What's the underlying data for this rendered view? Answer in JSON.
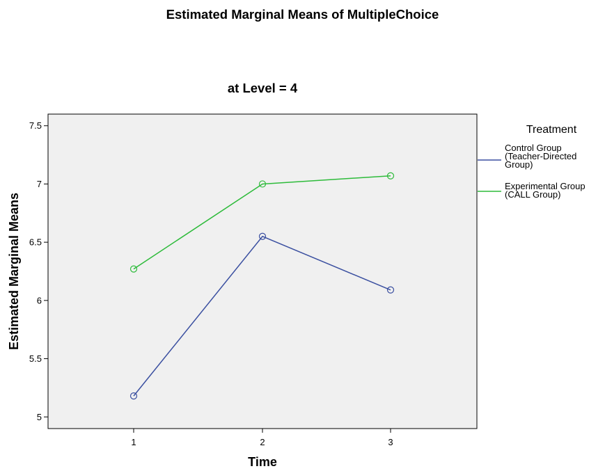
{
  "chart_data": {
    "type": "line",
    "title": "Estimated Marginal Means of MultipleChoice",
    "subtitle": "at Level = 4",
    "xlabel": "Time",
    "ylabel": "Estimated Marginal Means",
    "categories": [
      "1",
      "2",
      "3"
    ],
    "ylim": [
      4.9,
      7.6
    ],
    "yticks": [
      5,
      5.5,
      6,
      6.5,
      7,
      7.5
    ],
    "ytick_labels": [
      "5",
      "5.5",
      "6",
      "6.5",
      "7",
      "7.5"
    ],
    "grid": false,
    "legend": {
      "title": "Treatment",
      "placement": "right"
    },
    "series": [
      {
        "name": "Control Group (Teacher-Directed Group)",
        "legend_lines": [
          "Control Group",
          "(Teacher-Directed",
          "Group)"
        ],
        "color": "#3a4fa0",
        "values": [
          5.18,
          6.55,
          6.09
        ]
      },
      {
        "name": "Experimental Group (CALL Group)",
        "legend_lines": [
          "Experimental Group",
          "(CALL Group)"
        ],
        "color": "#2dbb3a",
        "values": [
          6.27,
          7.0,
          7.07
        ]
      }
    ],
    "plot_background": "#f0f0f0"
  }
}
